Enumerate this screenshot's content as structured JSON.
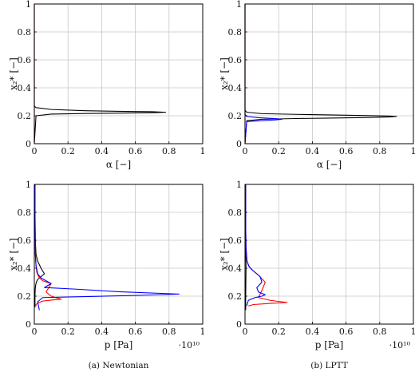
{
  "chart_data": [
    {
      "type": "line",
      "panel": "top-left",
      "xlabel": "α [−]",
      "ylabel": "x₂* [−]",
      "xlim": [
        0,
        1
      ],
      "ylim": [
        0,
        1
      ],
      "xticks": [
        "0",
        "0.2",
        "0.4",
        "0.6",
        "0.8",
        "1"
      ],
      "yticks": [
        "0",
        "0.2",
        "0.4",
        "0.6",
        "0.8",
        "1"
      ],
      "grid": true,
      "series": [
        {
          "color": "#000000",
          "x": [
            0,
            0.01,
            0.1,
            0.3,
            0.5,
            0.7,
            0.78,
            0.7,
            0.5,
            0.3,
            0.1,
            0.01,
            0,
            0
          ],
          "y": [
            0,
            0.2,
            0.212,
            0.216,
            0.219,
            0.222,
            0.225,
            0.229,
            0.232,
            0.236,
            0.245,
            0.258,
            0.27,
            1
          ]
        },
        {
          "color": "#ff0000",
          "x": [
            0,
            0
          ],
          "y": [
            0,
            1
          ]
        }
      ]
    },
    {
      "type": "line",
      "panel": "top-right",
      "xlabel": "α [−]",
      "ylabel": "x₂* [−]",
      "xlim": [
        0,
        1
      ],
      "ylim": [
        0,
        1
      ],
      "xticks": [
        "0",
        "0.2",
        "0.4",
        "0.6",
        "0.8",
        "1"
      ],
      "yticks": [
        "0",
        "0.2",
        "0.4",
        "0.6",
        "0.8",
        "1"
      ],
      "grid": true,
      "series": [
        {
          "color": "#000000",
          "x": [
            0,
            0.01,
            0.1,
            0.3,
            0.5,
            0.7,
            0.85,
            0.9,
            0.85,
            0.7,
            0.5,
            0.3,
            0.1,
            0.01,
            0,
            0
          ],
          "y": [
            0,
            0.165,
            0.175,
            0.18,
            0.183,
            0.187,
            0.191,
            0.195,
            0.198,
            0.202,
            0.206,
            0.21,
            0.215,
            0.225,
            0.24,
            1
          ]
        },
        {
          "color": "#0000ff",
          "x": [
            0,
            0.01,
            0.08,
            0.18,
            0.22,
            0.18,
            0.08,
            0.01,
            0,
            0
          ],
          "y": [
            0,
            0.158,
            0.164,
            0.17,
            0.175,
            0.18,
            0.186,
            0.195,
            0.21,
            1
          ]
        },
        {
          "color": "#ff0000",
          "x": [
            0,
            0
          ],
          "y": [
            0,
            1
          ]
        }
      ]
    },
    {
      "type": "line",
      "panel": "bottom-left",
      "xlabel": "p [Pa]",
      "ylabel": "x₂* [−]",
      "xlim": [
        0,
        1
      ],
      "ylim": [
        0,
        1
      ],
      "xticks": [
        "0",
        "0.2",
        "0.4",
        "0.6",
        "0.8",
        "1"
      ],
      "yticks": [
        "0",
        "0.2",
        "0.4",
        "0.6",
        "0.8",
        "1"
      ],
      "x_exponent": "·10¹⁰",
      "grid": true,
      "caption": "(a) Newtonian",
      "series": [
        {
          "color": "#000000",
          "x": [
            0.004,
            0.004,
            0.005,
            0.006,
            0.008,
            0.012,
            0.02,
            0.04,
            0.06,
            0.04,
            0.02,
            0.01,
            0.006,
            0.005,
            0.004,
            0.004
          ],
          "y": [
            0.12,
            0.2,
            0.24,
            0.26,
            0.28,
            0.3,
            0.32,
            0.34,
            0.36,
            0.4,
            0.45,
            0.5,
            0.6,
            0.7,
            0.85,
            1
          ]
        },
        {
          "color": "#ff0000",
          "x": [
            0.01,
            0.01,
            0.02,
            0.05,
            0.1,
            0.16,
            0.1,
            0.07,
            0.1,
            0.05,
            0.03,
            0.015,
            0.01,
            0.006,
            0.005,
            0.004,
            0.004
          ],
          "y": [
            0.13,
            0.14,
            0.15,
            0.165,
            0.172,
            0.178,
            0.2,
            0.23,
            0.29,
            0.31,
            0.33,
            0.37,
            0.42,
            0.5,
            0.65,
            0.85,
            1
          ]
        },
        {
          "color": "#0000ff",
          "x": [
            0.03,
            0.02,
            0.05,
            0.3,
            0.6,
            0.86,
            0.5,
            0.25,
            0.06,
            0.1,
            0.07,
            0.04,
            0.02,
            0.01,
            0.006,
            0.005,
            0.004,
            0.004
          ],
          "y": [
            0.1,
            0.16,
            0.19,
            0.197,
            0.205,
            0.215,
            0.232,
            0.25,
            0.262,
            0.29,
            0.31,
            0.33,
            0.36,
            0.42,
            0.5,
            0.65,
            0.85,
            1
          ]
        }
      ]
    },
    {
      "type": "line",
      "panel": "bottom-right",
      "xlabel": "p [Pa]",
      "ylabel": "x₂* [−]",
      "xlim": [
        0,
        1
      ],
      "ylim": [
        0,
        1
      ],
      "xticks": [
        "0",
        "0.2",
        "0.4",
        "0.6",
        "0.8",
        "1"
      ],
      "yticks": [
        "0",
        "0.2",
        "0.4",
        "0.6",
        "0.8",
        "1"
      ],
      "x_exponent": "·10¹⁰",
      "grid": true,
      "caption": "(b) LPTT",
      "series": [
        {
          "color": "#000000",
          "x": [
            0.004,
            0.004,
            0.005,
            0.006,
            0.005,
            0.004,
            0.004
          ],
          "y": [
            0.1,
            0.2,
            0.3,
            0.4,
            0.5,
            0.7,
            1
          ]
        },
        {
          "color": "#ff0000",
          "x": [
            0.02,
            0.05,
            0.15,
            0.25,
            0.15,
            0.08,
            0.1,
            0.12,
            0.08,
            0.04,
            0.02,
            0.01,
            0.006,
            0.004,
            0.004
          ],
          "y": [
            0.13,
            0.14,
            0.148,
            0.155,
            0.17,
            0.19,
            0.24,
            0.3,
            0.35,
            0.39,
            0.42,
            0.46,
            0.55,
            0.7,
            1
          ]
        },
        {
          "color": "#0000ff",
          "x": [
            0.01,
            0.02,
            0.06,
            0.1,
            0.12,
            0.08,
            0.07,
            0.1,
            0.09,
            0.05,
            0.025,
            0.012,
            0.006,
            0.004,
            0.004
          ],
          "y": [
            0.13,
            0.17,
            0.19,
            0.2,
            0.21,
            0.23,
            0.26,
            0.3,
            0.34,
            0.38,
            0.41,
            0.45,
            0.55,
            0.7,
            1
          ]
        }
      ]
    }
  ]
}
